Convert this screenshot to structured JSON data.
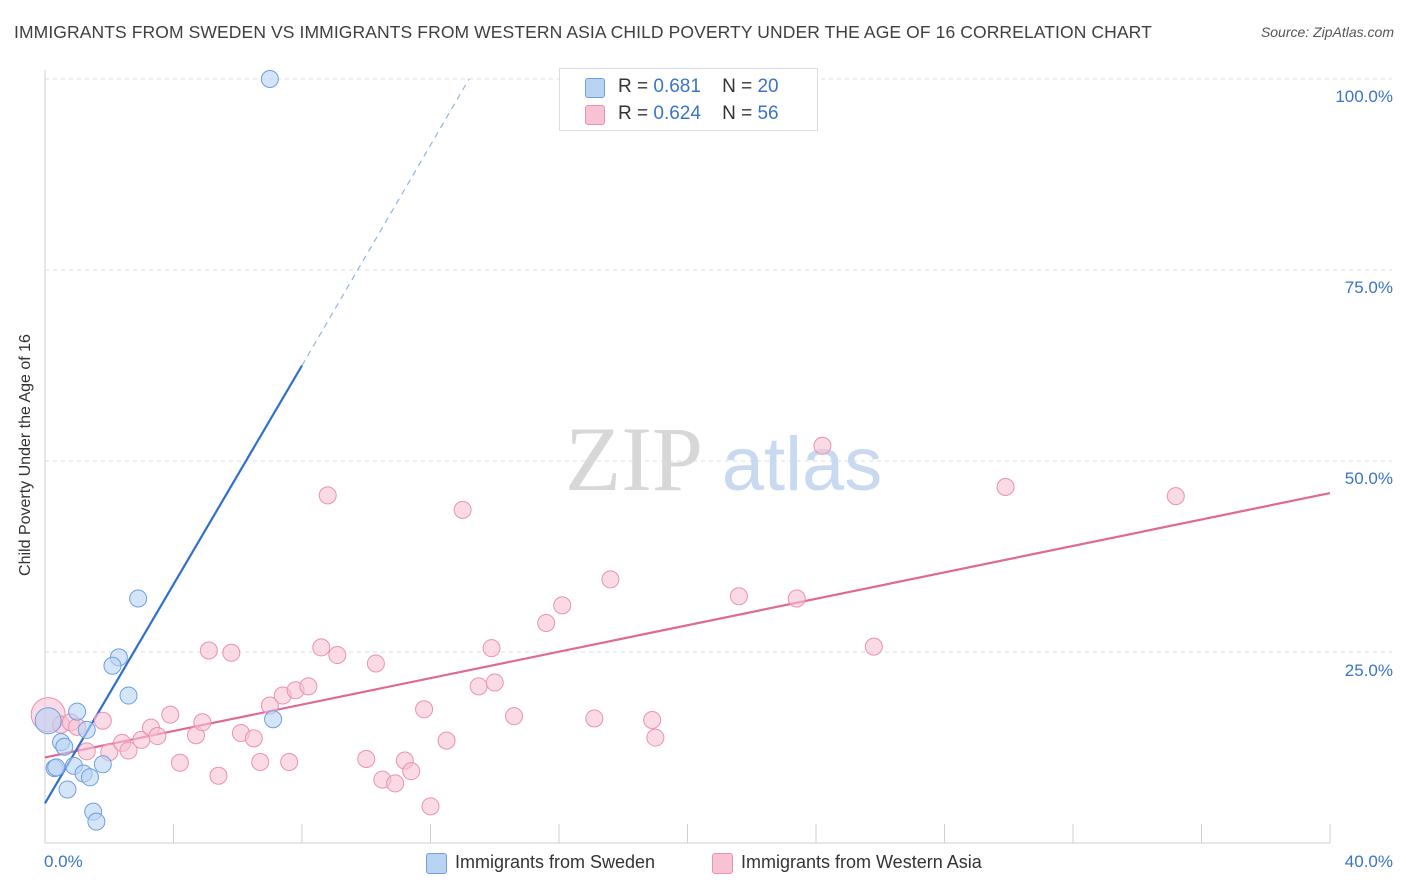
{
  "title": "IMMIGRANTS FROM SWEDEN VS IMMIGRANTS FROM WESTERN ASIA CHILD POVERTY UNDER THE AGE OF 16 CORRELATION CHART",
  "source": "Source: ZipAtlas.com",
  "watermark": {
    "zip": "ZIP",
    "atlas": "atlas"
  },
  "legend": {
    "sweden": {
      "r_label": "R =",
      "r_value": "0.681",
      "n_label": "N =",
      "n_value": "20",
      "name": "Immigrants from Sweden"
    },
    "western_asia": {
      "r_label": "R =",
      "r_value": "0.624",
      "n_label": "N =",
      "n_value": "56",
      "name": "Immigrants from Western Asia"
    }
  },
  "colors": {
    "sweden_fill": "#b9d3f3",
    "sweden_stroke": "#6f9fe0",
    "sweden_line": "#2f6fd0",
    "wa_fill": "#f7c2d3",
    "wa_stroke": "#ea92b0",
    "wa_line": "#e06894",
    "grid": "#dddddd",
    "axis_label": "#3a74c8"
  },
  "chart_data": {
    "type": "scatter",
    "title": "IMMIGRANTS FROM SWEDEN VS IMMIGRANTS FROM WESTERN ASIA CHILD POVERTY UNDER THE AGE OF 16 CORRELATION CHART",
    "xlabel": "",
    "ylabel": "Child Poverty Under the Age of 16",
    "xlim": [
      0,
      40
    ],
    "ylim": [
      0,
      105
    ],
    "x_tick_labels": {
      "min": "0.0%",
      "max": "40.0%"
    },
    "y_ticks": [
      {
        "value": 25,
        "label": "25.0%"
      },
      {
        "value": 50,
        "label": "50.0%"
      },
      {
        "value": 75,
        "label": "75.0%"
      },
      {
        "value": 100,
        "label": "100.0%"
      }
    ],
    "grid": true,
    "series": [
      {
        "name": "Immigrants from Sweden",
        "r": 0.681,
        "n": 20,
        "points": [
          [
            7.0,
            100.0
          ],
          [
            2.9,
            32.0
          ],
          [
            2.3,
            24.3
          ],
          [
            2.1,
            23.2
          ],
          [
            2.6,
            19.3
          ],
          [
            1.0,
            17.2
          ],
          [
            0.1,
            16.0
          ],
          [
            7.1,
            16.2
          ],
          [
            1.3,
            14.8
          ],
          [
            0.5,
            13.2
          ],
          [
            0.6,
            12.6
          ],
          [
            0.9,
            10.1
          ],
          [
            1.8,
            10.3
          ],
          [
            0.3,
            9.8
          ],
          [
            0.35,
            9.9
          ],
          [
            1.2,
            9.1
          ],
          [
            1.4,
            8.6
          ],
          [
            0.7,
            7.0
          ],
          [
            1.5,
            4.1
          ],
          [
            1.6,
            2.8
          ]
        ],
        "trend": {
          "x": [
            0.0,
            8.0
          ],
          "y": [
            5.2,
            62.5
          ]
        },
        "trend_ext": {
          "x": [
            8.0,
            13.2
          ],
          "y": [
            62.5,
            100.0
          ]
        }
      },
      {
        "name": "Immigrants from Western Asia",
        "r": 0.624,
        "n": 56,
        "points": [
          [
            0.1,
            16.8
          ],
          [
            0.5,
            15.5
          ],
          [
            0.8,
            15.8
          ],
          [
            1.0,
            15.2
          ],
          [
            1.8,
            16.0
          ],
          [
            1.3,
            12.0
          ],
          [
            2.0,
            11.9
          ],
          [
            2.4,
            13.1
          ],
          [
            2.6,
            12.1
          ],
          [
            3.0,
            13.5
          ],
          [
            3.3,
            15.1
          ],
          [
            3.5,
            14.0
          ],
          [
            3.9,
            16.8
          ],
          [
            4.2,
            10.5
          ],
          [
            4.7,
            14.1
          ],
          [
            4.9,
            15.8
          ],
          [
            5.1,
            25.2
          ],
          [
            5.4,
            8.8
          ],
          [
            5.8,
            24.9
          ],
          [
            6.1,
            14.4
          ],
          [
            6.5,
            13.7
          ],
          [
            6.7,
            10.6
          ],
          [
            7.0,
            18.0
          ],
          [
            7.4,
            19.3
          ],
          [
            7.6,
            10.6
          ],
          [
            7.8,
            20.0
          ],
          [
            8.2,
            20.5
          ],
          [
            8.6,
            25.6
          ],
          [
            8.8,
            45.5
          ],
          [
            9.1,
            24.6
          ],
          [
            10.0,
            11.0
          ],
          [
            10.3,
            23.5
          ],
          [
            10.5,
            8.3
          ],
          [
            10.9,
            7.8
          ],
          [
            11.2,
            10.8
          ],
          [
            11.4,
            9.4
          ],
          [
            11.8,
            17.5
          ],
          [
            12.0,
            4.8
          ],
          [
            12.5,
            13.4
          ],
          [
            13.0,
            43.6
          ],
          [
            13.5,
            20.5
          ],
          [
            13.9,
            25.5
          ],
          [
            14.0,
            21.0
          ],
          [
            14.6,
            16.6
          ],
          [
            15.6,
            28.8
          ],
          [
            16.1,
            31.1
          ],
          [
            17.1,
            16.3
          ],
          [
            17.6,
            34.5
          ],
          [
            18.9,
            16.1
          ],
          [
            19.0,
            13.8
          ],
          [
            21.6,
            32.3
          ],
          [
            23.4,
            32.0
          ],
          [
            24.2,
            52.0
          ],
          [
            25.8,
            25.7
          ],
          [
            29.9,
            46.6
          ],
          [
            35.2,
            45.4
          ]
        ],
        "trend": {
          "x": [
            0.0,
            40.0
          ],
          "y": [
            11.2,
            45.8
          ]
        }
      }
    ]
  }
}
